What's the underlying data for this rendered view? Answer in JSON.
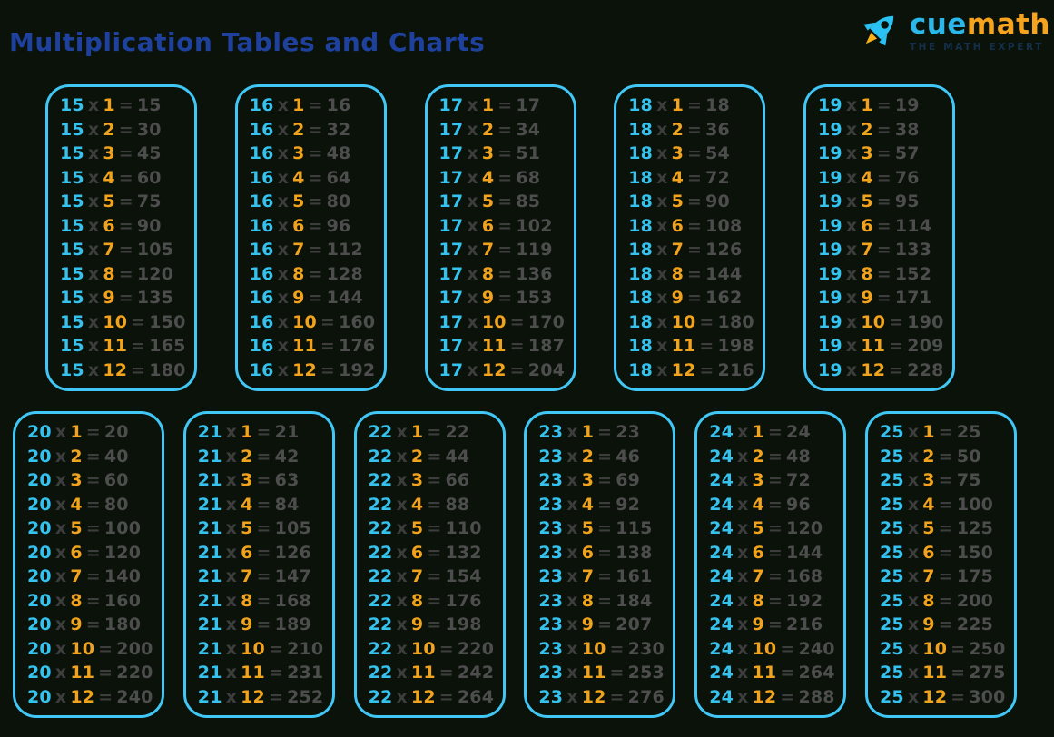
{
  "page": {
    "title": "Multiplication Tables and Charts",
    "background_color": "#0a120a"
  },
  "logo": {
    "rocket_icon": "rocket-icon",
    "brand_cue": "cue",
    "brand_math": "math",
    "tagline": "THE MATH EXPERT",
    "colors": {
      "cue": "#2ab7e9",
      "math": "#f6a41f",
      "tagline": "#14304d",
      "rocket_body": "#29c2f2",
      "rocket_flame": "#f9b21a"
    }
  },
  "symbols": {
    "times": "x",
    "equals": "="
  },
  "colors": {
    "multiplicand": "#35c2ee",
    "multiplier": "#f2a31d",
    "operator": "#3d3d3d",
    "product": "#4d4d4d",
    "card_border": "#41c7f5",
    "title": "#1e419e"
  },
  "chart_data": {
    "type": "table",
    "title": "Multiplication Tables and Charts",
    "multipliers": [
      1,
      2,
      3,
      4,
      5,
      6,
      7,
      8,
      9,
      10,
      11,
      12
    ],
    "rows": [
      {
        "tables": [
          {
            "n": 15,
            "products": [
              15,
              30,
              45,
              60,
              75,
              90,
              105,
              120,
              135,
              150,
              165,
              180
            ]
          },
          {
            "n": 16,
            "products": [
              16,
              32,
              48,
              64,
              80,
              96,
              112,
              128,
              144,
              160,
              176,
              192
            ]
          },
          {
            "n": 17,
            "products": [
              17,
              34,
              51,
              68,
              85,
              102,
              119,
              136,
              153,
              170,
              187,
              204
            ]
          },
          {
            "n": 18,
            "products": [
              18,
              36,
              54,
              72,
              90,
              108,
              126,
              144,
              162,
              180,
              198,
              216
            ]
          },
          {
            "n": 19,
            "products": [
              19,
              38,
              57,
              76,
              95,
              114,
              133,
              152,
              171,
              190,
              209,
              228
            ]
          }
        ]
      },
      {
        "tables": [
          {
            "n": 20,
            "products": [
              20,
              40,
              60,
              80,
              100,
              120,
              140,
              160,
              180,
              200,
              220,
              240
            ]
          },
          {
            "n": 21,
            "products": [
              21,
              42,
              63,
              84,
              105,
              126,
              147,
              168,
              189,
              210,
              231,
              252
            ]
          },
          {
            "n": 22,
            "products": [
              22,
              44,
              66,
              88,
              110,
              132,
              154,
              176,
              198,
              220,
              242,
              264
            ]
          },
          {
            "n": 23,
            "products": [
              23,
              46,
              69,
              92,
              115,
              138,
              161,
              184,
              207,
              230,
              253,
              276
            ]
          },
          {
            "n": 24,
            "products": [
              24,
              48,
              72,
              96,
              120,
              144,
              168,
              192,
              216,
              240,
              264,
              288
            ]
          },
          {
            "n": 25,
            "products": [
              25,
              50,
              75,
              100,
              125,
              150,
              175,
              200,
              225,
              250,
              275,
              300
            ]
          }
        ]
      }
    ]
  }
}
